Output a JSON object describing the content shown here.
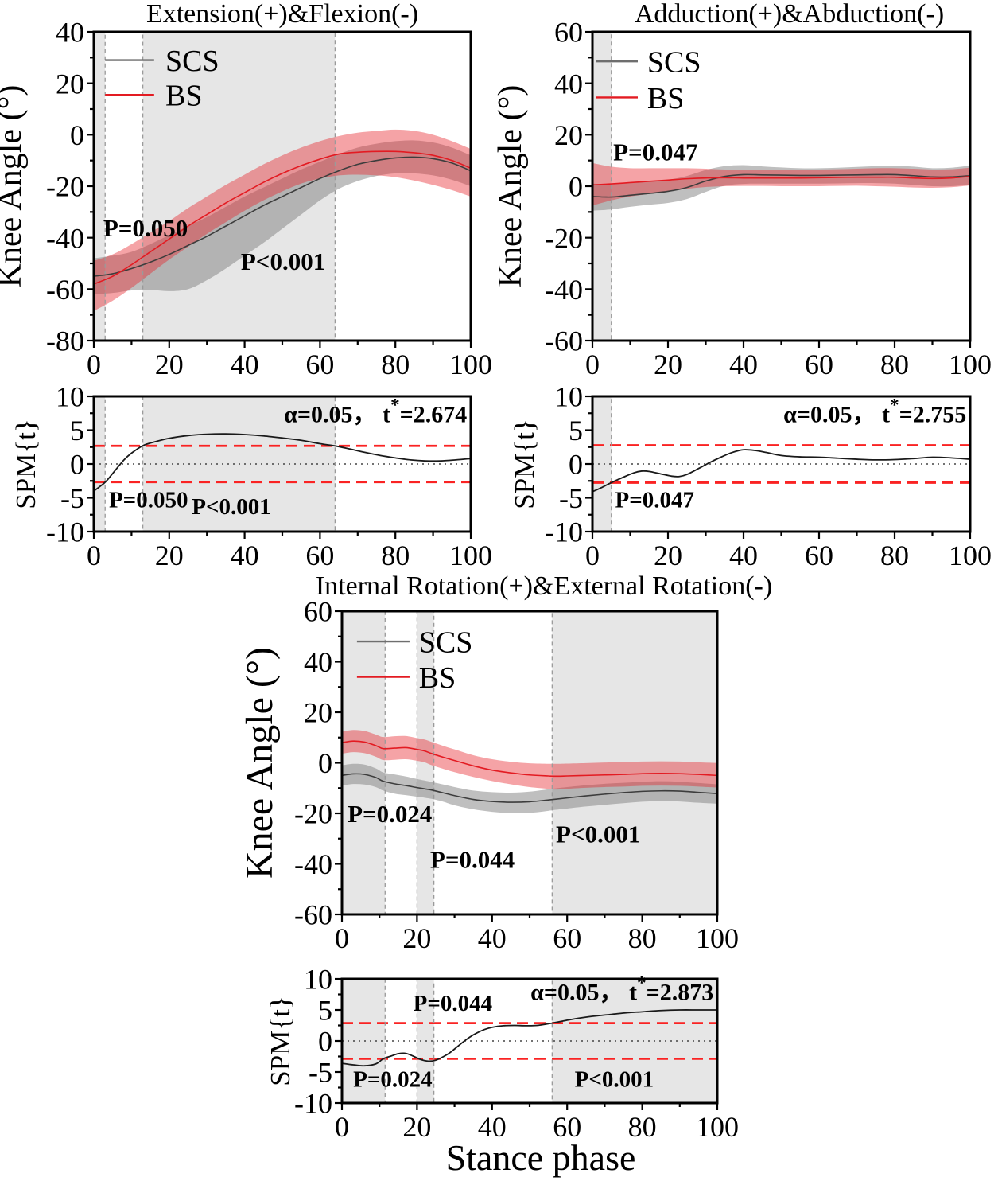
{
  "figure": {
    "xlabel": "Stance phase",
    "colors": {
      "scs_line": "#3d3d3d",
      "scs_legend": "#6e6e6e",
      "scs_band": "#7f7f7f",
      "bs_line": "#e31b22",
      "bs_band": "#e8232a",
      "region_fill": "#dcdcdc",
      "region_border": "#9a9a9a",
      "threshold": "#fa2323",
      "zero_line": "#444444",
      "axis": "#000000"
    }
  },
  "chart_data": [
    {
      "id": "knee-ef",
      "type": "line",
      "title": "Extension(+)&Flexion(-)",
      "ylabel": "Knee Angle (°)",
      "xlim": [
        0,
        100
      ],
      "ylim": [
        -80,
        40
      ],
      "xticks": [
        0,
        20,
        40,
        60,
        80,
        100
      ],
      "yticks": [
        40,
        20,
        0,
        -20,
        -40,
        -60,
        -80
      ],
      "regions": [
        [
          0,
          3
        ],
        [
          13,
          64
        ]
      ],
      "annotations": [
        {
          "text": "P=0.050",
          "x": 2.5,
          "y": -39.5
        },
        {
          "text": "P<0.001",
          "x": 39,
          "y": -52.5
        }
      ],
      "legend": true,
      "series": [
        {
          "name": "SCS",
          "x": [
            0,
            5,
            10,
            15,
            20,
            25,
            30,
            35,
            40,
            45,
            50,
            55,
            60,
            65,
            70,
            75,
            80,
            85,
            90,
            95,
            100
          ],
          "mean": [
            -55,
            -54,
            -52,
            -49.5,
            -46.5,
            -43,
            -39.5,
            -35.5,
            -31.5,
            -27.5,
            -24,
            -20.5,
            -17,
            -14,
            -11.5,
            -10,
            -9,
            -8.7,
            -9.3,
            -11,
            -14
          ],
          "upper": [
            -48,
            -47,
            -45.5,
            -42.5,
            -39,
            -35.5,
            -32,
            -28,
            -24,
            -20.5,
            -17,
            -13.5,
            -10.5,
            -7.5,
            -5,
            -3.5,
            -2.5,
            -2.2,
            -3,
            -5,
            -8
          ],
          "lower": [
            -62,
            -61.5,
            -60.5,
            -60.3,
            -60.8,
            -60,
            -56.5,
            -52,
            -47,
            -42,
            -36.5,
            -31,
            -25.5,
            -21,
            -18,
            -16,
            -15,
            -15,
            -15.8,
            -17.5,
            -20
          ]
        },
        {
          "name": "BS",
          "x": [
            0,
            5,
            10,
            15,
            20,
            25,
            30,
            35,
            40,
            45,
            50,
            55,
            60,
            65,
            70,
            75,
            80,
            85,
            90,
            95,
            100
          ],
          "mean": [
            -58,
            -55,
            -50.5,
            -45.5,
            -40.5,
            -35.5,
            -31,
            -26.5,
            -22.5,
            -18.5,
            -15,
            -12,
            -9.5,
            -7.5,
            -6.8,
            -6.5,
            -6.5,
            -7,
            -8,
            -10,
            -13
          ],
          "upper": [
            -49,
            -46.5,
            -42.5,
            -38,
            -33.5,
            -28.5,
            -24,
            -19.5,
            -15.5,
            -11.5,
            -8,
            -5,
            -2.5,
            -0.5,
            0.8,
            1.5,
            2,
            1.5,
            0,
            -2.5,
            -5.5
          ],
          "lower": [
            -68.5,
            -64.5,
            -59.5,
            -54,
            -48.5,
            -43.5,
            -38.5,
            -34,
            -29.5,
            -25.5,
            -22,
            -19,
            -17,
            -15.8,
            -15.5,
            -15.8,
            -16.5,
            -17.8,
            -19.5,
            -21.5,
            -24
          ]
        }
      ]
    },
    {
      "id": "knee-aa",
      "type": "line",
      "title": "Adduction(+)&Abduction(-)",
      "ylabel": "Knee Angle (°)",
      "xlim": [
        0,
        100
      ],
      "ylim": [
        -60,
        60
      ],
      "xticks": [
        0,
        20,
        40,
        60,
        80,
        100
      ],
      "yticks": [
        60,
        40,
        20,
        0,
        -20,
        -40,
        -60
      ],
      "regions": [
        [
          0,
          5
        ]
      ],
      "annotations": [
        {
          "text": "P=0.047",
          "x": 5.5,
          "y": 10
        }
      ],
      "legend": true,
      "series": [
        {
          "name": "SCS",
          "x": [
            0,
            5,
            10,
            15,
            20,
            25,
            30,
            35,
            40,
            45,
            50,
            55,
            60,
            65,
            70,
            75,
            80,
            85,
            90,
            95,
            100
          ],
          "mean": [
            -4,
            -4.2,
            -3.5,
            -2.8,
            -2,
            -0.5,
            2,
            3.8,
            4.5,
            4.4,
            4.3,
            4.2,
            4.2,
            4.3,
            4.4,
            4.5,
            4.5,
            4.1,
            3.6,
            3.6,
            4.1
          ],
          "upper": [
            1,
            0.8,
            1.2,
            1.8,
            2.5,
            4,
            6.3,
            7.8,
            8.2,
            7.7,
            7.3,
            7,
            7,
            7.2,
            7.5,
            7.8,
            8,
            7.6,
            7,
            7.2,
            8
          ],
          "lower": [
            -9.5,
            -9,
            -8,
            -7.2,
            -6.5,
            -5,
            -2.2,
            0.2,
            0.9,
            1,
            1,
            1,
            1,
            1.1,
            1.2,
            1.2,
            1,
            0.5,
            0,
            0,
            0.5
          ]
        },
        {
          "name": "BS",
          "x": [
            0,
            5,
            10,
            15,
            20,
            25,
            30,
            35,
            40,
            45,
            50,
            55,
            60,
            65,
            70,
            75,
            80,
            85,
            90,
            95,
            100
          ],
          "mean": [
            0.5,
            0.9,
            1.4,
            1.9,
            2.4,
            2.9,
            3.2,
            3.3,
            3.2,
            3.2,
            3.2,
            3.2,
            3.3,
            3.4,
            3.5,
            3.5,
            3.5,
            3.2,
            3,
            3.2,
            3.8
          ],
          "upper": [
            9,
            7.6,
            7,
            7,
            7,
            7,
            6.8,
            6.5,
            6.3,
            6.3,
            6.4,
            6.5,
            6.5,
            6.6,
            6.8,
            7,
            7,
            6.8,
            6.5,
            6.6,
            7.2
          ],
          "lower": [
            -7.5,
            -5.5,
            -4,
            -3,
            -2,
            -1,
            -0.3,
            0,
            0.1,
            0.1,
            0,
            0,
            0,
            0.1,
            0.2,
            0,
            -0.2,
            -0.5,
            -0.6,
            -0.4,
            0.3
          ]
        }
      ]
    },
    {
      "id": "spm-ef",
      "type": "line",
      "ylabel": "SPM{t}",
      "xlim": [
        0,
        100
      ],
      "ylim": [
        -10,
        10
      ],
      "xticks": [
        0,
        20,
        40,
        60,
        80,
        100
      ],
      "yticks": [
        10,
        5,
        0,
        -5,
        -10
      ],
      "threshold": 2.674,
      "threshold_label": {
        "prefix": "α=0.05， t",
        "star": "*",
        "suffix": "=2.674",
        "x": 99,
        "y": 6.2
      },
      "regions": [
        [
          0,
          3
        ],
        [
          13,
          64
        ]
      ],
      "annotations": [
        {
          "text": "P=0.050",
          "x": 4,
          "y": -6.4
        },
        {
          "text": "P<0.001",
          "x": 26,
          "y": -7.4
        }
      ],
      "series": [
        {
          "name": "t",
          "x": [
            0,
            3,
            5,
            8,
            10,
            13,
            16,
            20,
            25,
            30,
            35,
            40,
            45,
            50,
            55,
            60,
            64,
            68,
            72,
            76,
            80,
            84,
            88,
            92,
            96,
            100
          ],
          "mean": [
            -4,
            -2.7,
            -1.4,
            0.6,
            1.6,
            2.7,
            3.25,
            3.8,
            4.2,
            4.4,
            4.45,
            4.35,
            4.15,
            3.85,
            3.5,
            3.0,
            2.67,
            2.2,
            1.7,
            1.25,
            0.9,
            0.6,
            0.45,
            0.45,
            0.6,
            0.8
          ]
        }
      ]
    },
    {
      "id": "spm-aa",
      "type": "line",
      "ylabel": "SPM{t}",
      "xlim": [
        0,
        100
      ],
      "ylim": [
        -10,
        10
      ],
      "xticks": [
        0,
        20,
        40,
        60,
        80,
        100
      ],
      "yticks": [
        10,
        5,
        0,
        -5,
        -10
      ],
      "threshold": 2.755,
      "threshold_label": {
        "prefix": "α=0.05， t",
        "star": "*",
        "suffix": "=2.755",
        "x": 99,
        "y": 6.2
      },
      "regions": [
        [
          0,
          5
        ]
      ],
      "annotations": [
        {
          "text": "P=0.047",
          "x": 6,
          "y": -6.4
        }
      ],
      "series": [
        {
          "name": "t",
          "x": [
            0,
            2,
            5,
            8,
            11,
            13,
            15,
            18,
            21,
            23,
            25,
            28,
            31,
            34,
            37,
            40,
            43,
            46,
            50,
            55,
            60,
            65,
            70,
            75,
            80,
            85,
            90,
            95,
            100
          ],
          "mean": [
            -4.1,
            -3.6,
            -2.76,
            -2.0,
            -1.3,
            -1.05,
            -1.1,
            -1.45,
            -1.8,
            -1.85,
            -1.55,
            -0.7,
            0.2,
            1.0,
            1.7,
            2.1,
            2.0,
            1.7,
            1.25,
            1.05,
            1.0,
            0.85,
            0.7,
            0.6,
            0.65,
            0.8,
            1.0,
            0.9,
            0.7
          ]
        }
      ]
    },
    {
      "id": "knee-ir",
      "type": "line",
      "title": "Internal Rotation(+)&External Rotation(-)",
      "ylabel": "Knee Angle (°)",
      "xlim": [
        0,
        100
      ],
      "ylim": [
        -60,
        60
      ],
      "xticks": [
        0,
        20,
        40,
        60,
        80,
        100
      ],
      "yticks": [
        60,
        40,
        20,
        0,
        -20,
        -40,
        -60
      ],
      "regions": [
        [
          0,
          11.5
        ],
        [
          20,
          24.5
        ],
        [
          56,
          100
        ]
      ],
      "annotations": [
        {
          "text": "P=0.024",
          "x": 1.5,
          "y": -23.5
        },
        {
          "text": "P=0.044",
          "x": 23.5,
          "y": -41.5
        },
        {
          "text": "P<0.001",
          "x": 57,
          "y": -31.5
        }
      ],
      "legend": true,
      "series": [
        {
          "name": "SCS",
          "x": [
            0,
            3,
            6,
            9,
            11,
            14,
            17,
            20,
            22,
            24,
            27,
            30,
            35,
            40,
            45,
            50,
            55,
            57,
            60,
            65,
            70,
            75,
            80,
            85,
            90,
            95,
            100
          ],
          "mean": [
            -5,
            -4.4,
            -4.6,
            -5.8,
            -7.3,
            -8.3,
            -9,
            -9.8,
            -10.3,
            -10.8,
            -11.9,
            -13,
            -14.5,
            -15.3,
            -15.6,
            -15.4,
            -14.7,
            -14.4,
            -13.9,
            -13.1,
            -12.4,
            -11.8,
            -11.3,
            -11.1,
            -11.2,
            -11.7,
            -12.2
          ],
          "upper": [
            -1,
            -0.4,
            -0.7,
            -2.2,
            -3.8,
            -4.6,
            -5.4,
            -6.4,
            -7,
            -7.6,
            -8.6,
            -9.6,
            -11,
            -11.6,
            -11.8,
            -11.4,
            -10.5,
            -10.1,
            -9.6,
            -8.9,
            -8.3,
            -7.9,
            -7.5,
            -7.3,
            -7.5,
            -8,
            -8.5
          ],
          "lower": [
            -9,
            -8.4,
            -8.6,
            -9.6,
            -11,
            -12.2,
            -12.8,
            -13.4,
            -13.8,
            -14.3,
            -15.4,
            -16.8,
            -18.4,
            -19.4,
            -19.9,
            -19.8,
            -19,
            -18.6,
            -18.1,
            -17.3,
            -16.6,
            -16,
            -15.4,
            -15.1,
            -15.3,
            -15.8,
            -16.2
          ]
        },
        {
          "name": "BS",
          "x": [
            0,
            3,
            6,
            9,
            11,
            14,
            17,
            20,
            22,
            24,
            27,
            30,
            35,
            40,
            45,
            50,
            55,
            57,
            60,
            65,
            70,
            75,
            80,
            85,
            90,
            95,
            100
          ],
          "mean": [
            8,
            8.6,
            8.2,
            6.8,
            5.6,
            5.8,
            6,
            5.3,
            4.7,
            3.6,
            2.2,
            0.9,
            -1.2,
            -2.9,
            -4,
            -4.8,
            -5.2,
            -5.3,
            -5.2,
            -5,
            -4.8,
            -4.6,
            -4.3,
            -4.2,
            -4.3,
            -4.6,
            -5
          ],
          "upper": [
            12.3,
            13,
            12.6,
            11.2,
            10.2,
            10.5,
            10.6,
            9.8,
            9.2,
            8.2,
            6.7,
            5.3,
            3,
            1.4,
            0.4,
            -0.2,
            -0.4,
            -0.4,
            -0.3,
            -0.1,
            0.1,
            0.3,
            0.5,
            0.6,
            0.5,
            0.2,
            -0.1
          ],
          "lower": [
            3.6,
            4.2,
            3.8,
            2.4,
            1.1,
            1.2,
            1.4,
            0.8,
            0.2,
            -1,
            -2.4,
            -3.7,
            -5.6,
            -7.2,
            -8.5,
            -9.6,
            -10.3,
            -10.6,
            -10.3,
            -9.9,
            -9.6,
            -9.4,
            -9.1,
            -9,
            -9.1,
            -9.4,
            -9.8
          ]
        }
      ]
    },
    {
      "id": "spm-ir",
      "type": "line",
      "ylabel": "SPM{t}",
      "xlim": [
        0,
        100
      ],
      "ylim": [
        -10,
        10
      ],
      "xticks": [
        0,
        20,
        40,
        60,
        80,
        100
      ],
      "yticks": [
        10,
        5,
        0,
        -5,
        -10
      ],
      "threshold": 2.873,
      "threshold_label": {
        "prefix": "α=0.05， t",
        "star": "*",
        "suffix": "=2.873",
        "x": 99,
        "y": 6.6
      },
      "regions": [
        [
          0,
          11.5
        ],
        [
          20,
          24.5
        ],
        [
          56,
          100
        ]
      ],
      "annotations": [
        {
          "text": "P=0.044",
          "x": 19,
          "y": 4.9
        },
        {
          "text": "P=0.024",
          "x": 3,
          "y": -7.4
        },
        {
          "text": "P<0.001",
          "x": 62,
          "y": -7.4
        }
      ],
      "series": [
        {
          "name": "t",
          "x": [
            0,
            3,
            6,
            9,
            11,
            13,
            15,
            17,
            19,
            21,
            23,
            25,
            28,
            30,
            32,
            34,
            36,
            38,
            40,
            43,
            46,
            49,
            52,
            56,
            60,
            64,
            68,
            72,
            76,
            80,
            85,
            90,
            95,
            100
          ],
          "mean": [
            -3.6,
            -3.85,
            -4.0,
            -3.7,
            -2.87,
            -2.45,
            -2.05,
            -2.0,
            -2.45,
            -3.0,
            -3.25,
            -3.1,
            -2.2,
            -1.3,
            -0.3,
            0.6,
            1.3,
            1.85,
            2.2,
            2.45,
            2.5,
            2.45,
            2.5,
            2.87,
            3.35,
            3.75,
            4.05,
            4.3,
            4.55,
            4.7,
            4.9,
            5.0,
            5.0,
            5.0
          ]
        }
      ]
    }
  ]
}
